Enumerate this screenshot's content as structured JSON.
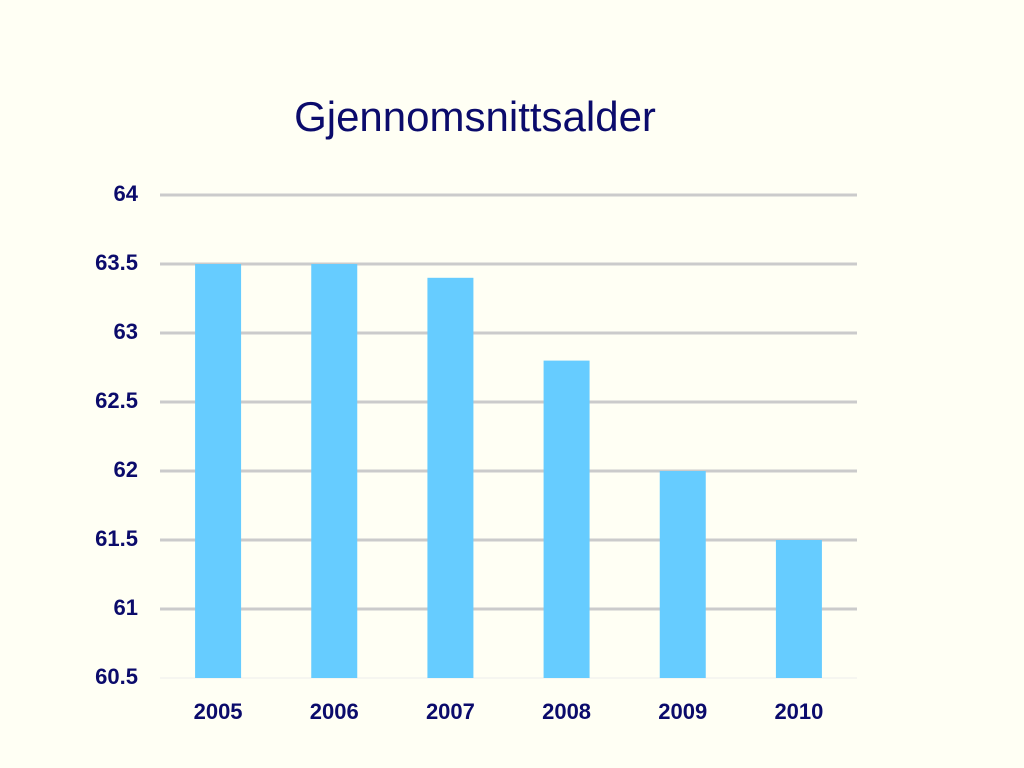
{
  "chart_data": {
    "type": "bar",
    "title": "Gjennomsnittsalder",
    "categories": [
      "2005",
      "2006",
      "2007",
      "2008",
      "2009",
      "2010"
    ],
    "values": [
      63.5,
      63.5,
      63.4,
      62.8,
      62.0,
      61.5
    ],
    "color": "#66ccff",
    "ylim": [
      60.5,
      64
    ],
    "yticks": [
      60.5,
      61,
      61.5,
      62,
      62.5,
      63,
      63.5,
      64
    ],
    "grid": true
  }
}
